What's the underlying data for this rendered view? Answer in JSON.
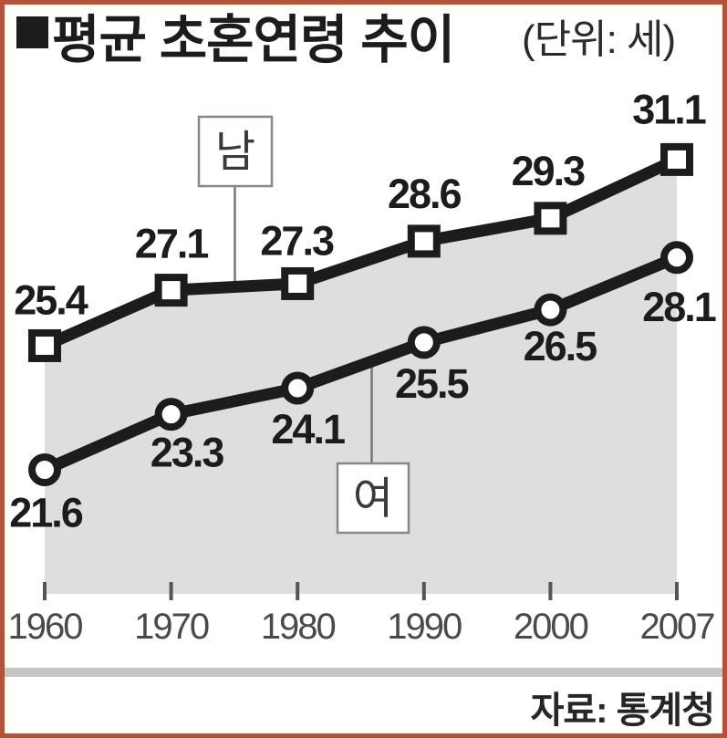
{
  "header": {
    "title": "평균 초혼연령 추이",
    "unit": "(단위: 세)"
  },
  "footer": {
    "source": "자료: 통계청"
  },
  "legend": {
    "male_label": "남",
    "female_label": "여"
  },
  "chart_data": {
    "type": "line",
    "title": "평균 초혼연령 추이",
    "unit_label": "(단위: 세)",
    "source": "자료: 통계청",
    "categories": [
      "1960",
      "1970",
      "1980",
      "1990",
      "2000",
      "2007"
    ],
    "series": [
      {
        "name": "남",
        "marker": "square",
        "values": [
          25.4,
          27.1,
          27.3,
          28.6,
          29.3,
          31.1
        ]
      },
      {
        "name": "여",
        "marker": "circle",
        "values": [
          21.6,
          23.3,
          24.1,
          25.5,
          26.5,
          28.1
        ]
      }
    ],
    "value_label_format": "0.0",
    "legend_position": "inline-callout-boxes",
    "grid": false,
    "area_fill_under_top_series": true,
    "colors": {
      "line": "#1c1c1c",
      "marker_fill": "#ffffff",
      "area_fill": "#dedede",
      "value_label": "#1c1c1c",
      "axis_text": "#4a4a4a",
      "tick": "#555555",
      "separator_bar": "#c5c5c5",
      "frame_border": "#b45339",
      "legend_box_border": "#888888"
    }
  }
}
